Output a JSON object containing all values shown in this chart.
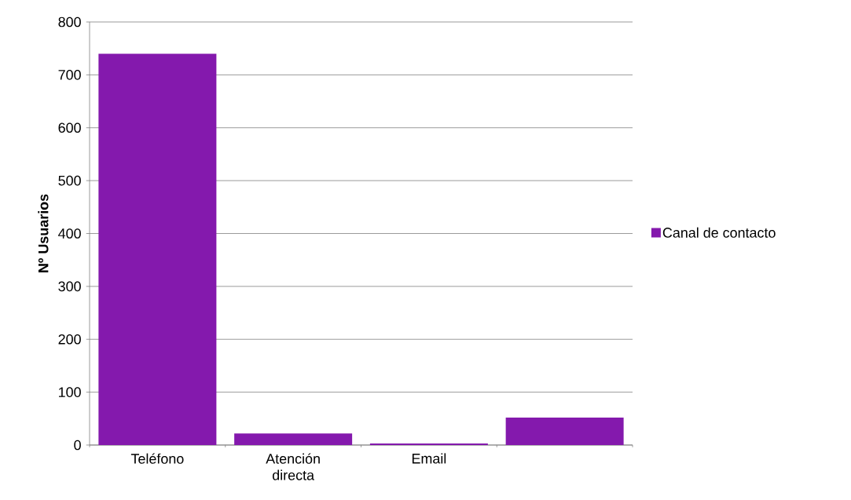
{
  "chart_data": {
    "type": "bar",
    "ylabel": "**Nº Usuarios**",
    "categories": [
      "Teléfono",
      "Atención directa",
      "Email",
      null
    ],
    "series": [
      {
        "name": "Canal de contacto",
        "color": "#8419ad",
        "values": [
          740,
          22,
          3,
          52
        ]
      }
    ],
    "ylim": [
      0,
      800
    ],
    "yticks": [
      0,
      100,
      200,
      300,
      400,
      500,
      600,
      700,
      800
    ],
    "grid": "y",
    "legend": "right"
  }
}
